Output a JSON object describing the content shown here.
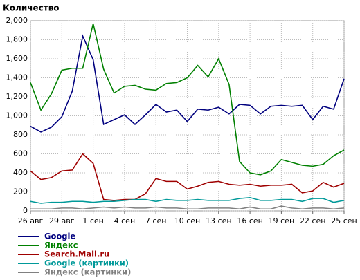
{
  "chart_data": {
    "type": "line",
    "title": "Количество",
    "categories": [
      "26 авг",
      null,
      null,
      "29 авг",
      null,
      null,
      "1 сен",
      null,
      null,
      "4 сен",
      null,
      null,
      "7 сен",
      null,
      null,
      "10 сен",
      null,
      null,
      "13 сен",
      null,
      null,
      "16 сен",
      null,
      null,
      "19 сен",
      null,
      null,
      "22 сен",
      null,
      null,
      "25 сен"
    ],
    "ylim": [
      0,
      2000
    ],
    "yticks": [
      0,
      200,
      400,
      600,
      800,
      {
        "value": 1000,
        "label": "1,000"
      },
      {
        "value": 1200,
        "label": "1,200"
      },
      {
        "value": 1400,
        "label": "1,400"
      },
      {
        "value": 1600,
        "label": "1,600"
      },
      {
        "value": 1800,
        "label": "1,800"
      },
      {
        "value": 2000,
        "label": "2,000"
      }
    ],
    "grid": true,
    "series": [
      {
        "name": "Google",
        "color": "#00007f",
        "values": [
          890,
          830,
          880,
          990,
          1260,
          1840,
          1590,
          910,
          960,
          1010,
          910,
          1010,
          1120,
          1040,
          1060,
          940,
          1070,
          1060,
          1090,
          1020,
          1120,
          1110,
          1020,
          1100,
          1110,
          1100,
          1110,
          960,
          1100,
          1070,
          1390
        ]
      },
      {
        "name": "Яндекс",
        "color": "#008000",
        "values": [
          1350,
          1060,
          1230,
          1480,
          1500,
          1500,
          1970,
          1490,
          1240,
          1310,
          1320,
          1280,
          1270,
          1340,
          1350,
          1400,
          1530,
          1410,
          1600,
          1330,
          520,
          400,
          380,
          420,
          540,
          510,
          480,
          470,
          490,
          580,
          640
        ]
      },
      {
        "name": "Search.Mail.ru",
        "color": "#9f0000",
        "values": [
          420,
          330,
          350,
          420,
          430,
          600,
          500,
          120,
          110,
          120,
          120,
          180,
          340,
          310,
          310,
          230,
          260,
          300,
          310,
          280,
          270,
          280,
          260,
          270,
          270,
          280,
          190,
          210,
          300,
          250,
          290
        ]
      },
      {
        "name": "Google (картинки)",
        "color": "#009999",
        "values": [
          100,
          80,
          90,
          90,
          100,
          100,
          90,
          100,
          100,
          110,
          120,
          120,
          100,
          120,
          110,
          110,
          120,
          110,
          110,
          110,
          130,
          140,
          110,
          110,
          120,
          120,
          100,
          130,
          130,
          90,
          110
        ]
      },
      {
        "name": "Яндекс (картинки)",
        "color": "#808080",
        "values": [
          20,
          20,
          20,
          30,
          30,
          20,
          30,
          40,
          30,
          40,
          30,
          30,
          40,
          30,
          30,
          20,
          20,
          30,
          30,
          30,
          20,
          40,
          20,
          20,
          50,
          30,
          20,
          30,
          30,
          20,
          30
        ]
      }
    ]
  }
}
